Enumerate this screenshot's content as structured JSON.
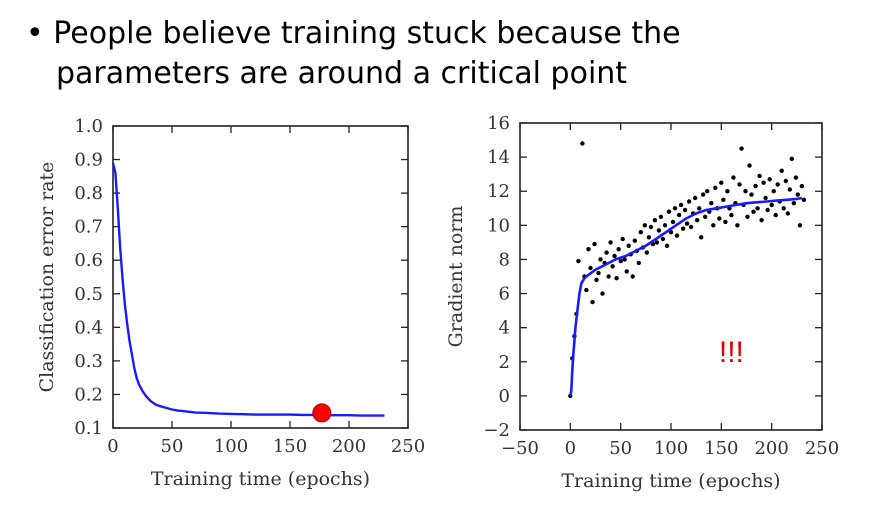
{
  "slide": {
    "bullet": "•",
    "line1": "People believe training stuck because the",
    "line2": "parameters are around a critical point"
  },
  "colors": {
    "series": "#1a1aff",
    "points": "#000000",
    "marker": "#ff0000",
    "annotation": "#e00000"
  },
  "chart_data": [
    {
      "type": "line",
      "title": "",
      "xlabel": "Training time (epochs)",
      "ylabel": "Classification error rate",
      "xlim": [
        0,
        250
      ],
      "ylim": [
        0.1,
        1.0
      ],
      "xticks": [
        0,
        50,
        100,
        150,
        200,
        250
      ],
      "yticks": [
        0.1,
        0.2,
        0.3,
        0.4,
        0.5,
        0.6,
        0.7,
        0.8,
        0.9,
        1.0
      ],
      "series": [
        {
          "values": [
            [
              0,
              0.89
            ],
            [
              2,
              0.86
            ],
            [
              4,
              0.76
            ],
            [
              6,
              0.64
            ],
            [
              8,
              0.55
            ],
            [
              10,
              0.47
            ],
            [
              12,
              0.41
            ],
            [
              14,
              0.36
            ],
            [
              16,
              0.32
            ],
            [
              18,
              0.28
            ],
            [
              20,
              0.25
            ],
            [
              22,
              0.23
            ],
            [
              25,
              0.21
            ],
            [
              28,
              0.195
            ],
            [
              32,
              0.18
            ],
            [
              36,
              0.17
            ],
            [
              40,
              0.165
            ],
            [
              45,
              0.16
            ],
            [
              50,
              0.155
            ],
            [
              55,
              0.152
            ],
            [
              60,
              0.15
            ],
            [
              70,
              0.146
            ],
            [
              80,
              0.145
            ],
            [
              90,
              0.143
            ],
            [
              100,
              0.142
            ],
            [
              110,
              0.141
            ],
            [
              120,
              0.14
            ],
            [
              130,
              0.14
            ],
            [
              140,
              0.14
            ],
            [
              150,
              0.14
            ],
            [
              160,
              0.139
            ],
            [
              170,
              0.139
            ],
            [
              180,
              0.138
            ],
            [
              190,
              0.138
            ],
            [
              200,
              0.138
            ],
            [
              210,
              0.137
            ],
            [
              220,
              0.137
            ],
            [
              230,
              0.137
            ]
          ]
        }
      ],
      "highlight": {
        "x": 177,
        "y": 0.145
      }
    },
    {
      "type": "scatter",
      "title": "",
      "xlabel": "Training time (epochs)",
      "ylabel": "Gradient norm",
      "xlim": [
        -50,
        250
      ],
      "ylim": [
        -2,
        16
      ],
      "xticks": [
        -50,
        0,
        50,
        100,
        150,
        200,
        250
      ],
      "yticks": [
        -2,
        0,
        2,
        4,
        6,
        8,
        10,
        12,
        14,
        16
      ],
      "annotation": "!!!",
      "series": [
        {
          "values": [
            [
              0,
              0
            ],
            [
              1,
              0.3
            ],
            [
              2,
              1.5
            ],
            [
              3,
              2.5
            ],
            [
              4,
              3.2
            ],
            [
              5,
              4.0
            ],
            [
              7,
              5.0
            ],
            [
              9,
              6.0
            ],
            [
              11,
              6.6
            ],
            [
              14,
              6.9
            ],
            [
              18,
              7.1
            ],
            [
              25,
              7.4
            ],
            [
              35,
              7.7
            ],
            [
              45,
              8.0
            ],
            [
              55,
              8.2
            ],
            [
              65,
              8.5
            ],
            [
              75,
              8.8
            ],
            [
              85,
              9.2
            ],
            [
              95,
              9.6
            ],
            [
              105,
              10.0
            ],
            [
              115,
              10.4
            ],
            [
              125,
              10.7
            ],
            [
              135,
              10.9
            ],
            [
              145,
              11.0
            ],
            [
              155,
              11.1
            ],
            [
              165,
              11.2
            ],
            [
              175,
              11.3
            ],
            [
              185,
              11.35
            ],
            [
              195,
              11.4
            ],
            [
              205,
              11.45
            ],
            [
              215,
              11.5
            ],
            [
              225,
              11.55
            ],
            [
              230,
              11.6
            ]
          ]
        },
        {
          "values": [
            [
              0,
              0
            ],
            [
              2,
              2.2
            ],
            [
              4,
              3.5
            ],
            [
              6,
              4.8
            ],
            [
              8,
              7.9
            ],
            [
              12,
              14.8
            ],
            [
              14,
              7.0
            ],
            [
              16,
              6.2
            ],
            [
              18,
              8.6
            ],
            [
              20,
              7.5
            ],
            [
              22,
              5.5
            ],
            [
              24,
              8.9
            ],
            [
              26,
              6.8
            ],
            [
              28,
              7.2
            ],
            [
              30,
              8.0
            ],
            [
              32,
              6.0
            ],
            [
              34,
              7.8
            ],
            [
              36,
              8.4
            ],
            [
              38,
              7.0
            ],
            [
              40,
              9.0
            ],
            [
              42,
              7.6
            ],
            [
              44,
              8.2
            ],
            [
              46,
              6.9
            ],
            [
              48,
              8.6
            ],
            [
              50,
              7.9
            ],
            [
              52,
              9.2
            ],
            [
              54,
              8.0
            ],
            [
              56,
              7.3
            ],
            [
              58,
              8.8
            ],
            [
              60,
              8.3
            ],
            [
              62,
              7.0
            ],
            [
              64,
              9.1
            ],
            [
              66,
              8.5
            ],
            [
              68,
              7.8
            ],
            [
              70,
              9.6
            ],
            [
              72,
              8.7
            ],
            [
              74,
              10.0
            ],
            [
              76,
              8.4
            ],
            [
              78,
              9.3
            ],
            [
              80,
              9.9
            ],
            [
              82,
              8.9
            ],
            [
              84,
              10.3
            ],
            [
              86,
              9.0
            ],
            [
              88,
              9.7
            ],
            [
              90,
              10.5
            ],
            [
              92,
              9.2
            ],
            [
              94,
              10.0
            ],
            [
              96,
              8.8
            ],
            [
              98,
              10.8
            ],
            [
              100,
              9.6
            ],
            [
              102,
              10.2
            ],
            [
              104,
              11.0
            ],
            [
              106,
              9.4
            ],
            [
              108,
              10.6
            ],
            [
              110,
              11.2
            ],
            [
              112,
              9.8
            ],
            [
              114,
              10.9
            ],
            [
              116,
              10.1
            ],
            [
              118,
              11.4
            ],
            [
              120,
              9.9
            ],
            [
              122,
              10.7
            ],
            [
              124,
              11.6
            ],
            [
              126,
              10.3
            ],
            [
              128,
              11.0
            ],
            [
              130,
              9.3
            ],
            [
              132,
              11.8
            ],
            [
              134,
              10.5
            ],
            [
              136,
              12.0
            ],
            [
              138,
              10.8
            ],
            [
              140,
              11.3
            ],
            [
              142,
              10.0
            ],
            [
              144,
              12.2
            ],
            [
              146,
              11.0
            ],
            [
              148,
              10.4
            ],
            [
              150,
              12.5
            ],
            [
              152,
              11.5
            ],
            [
              154,
              10.2
            ],
            [
              156,
              12.0
            ],
            [
              158,
              11.0
            ],
            [
              160,
              10.6
            ],
            [
              162,
              12.8
            ],
            [
              164,
              11.3
            ],
            [
              166,
              10.0
            ],
            [
              168,
              12.4
            ],
            [
              170,
              14.5
            ],
            [
              172,
              11.2
            ],
            [
              174,
              12.0
            ],
            [
              176,
              10.5
            ],
            [
              178,
              13.5
            ],
            [
              180,
              11.8
            ],
            [
              182,
              10.8
            ],
            [
              184,
              12.3
            ],
            [
              186,
              11.0
            ],
            [
              188,
              12.9
            ],
            [
              190,
              10.3
            ],
            [
              192,
              12.5
            ],
            [
              194,
              11.6
            ],
            [
              196,
              10.9
            ],
            [
              198,
              12.7
            ],
            [
              200,
              11.2
            ],
            [
              202,
              12.0
            ],
            [
              204,
              10.6
            ],
            [
              206,
              12.4
            ],
            [
              208,
              11.4
            ],
            [
              210,
              13.2
            ],
            [
              212,
              11.0
            ],
            [
              214,
              12.6
            ],
            [
              216,
              10.7
            ],
            [
              218,
              12.1
            ],
            [
              220,
              13.9
            ],
            [
              222,
              11.3
            ],
            [
              224,
              12.8
            ],
            [
              226,
              11.8
            ],
            [
              228,
              10.0
            ],
            [
              230,
              12.3
            ],
            [
              232,
              11.5
            ]
          ]
        }
      ]
    }
  ]
}
